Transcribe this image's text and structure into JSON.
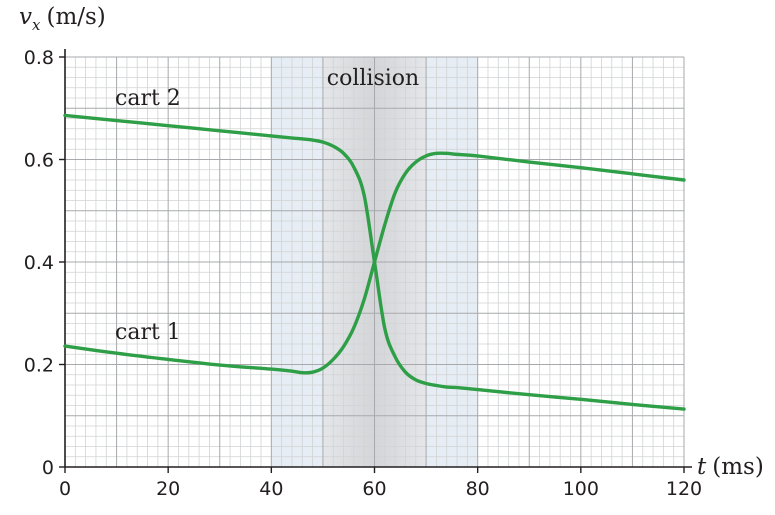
{
  "chart_data": {
    "type": "line",
    "xlabel_var": "t",
    "xlabel_unit": "(ms)",
    "ylabel_var": "v",
    "ylabel_sub": "x",
    "ylabel_unit": "(m/s)",
    "xlim": [
      0,
      120
    ],
    "ylim": [
      0,
      0.8
    ],
    "xticks": [
      "0",
      "20",
      "40",
      "60",
      "80",
      "100",
      "120"
    ],
    "yticks": [
      "0",
      "0.2",
      "0.4",
      "0.6",
      "0.8"
    ],
    "grid": true,
    "colors": {
      "line": "#2e9e47",
      "band_light": "#e6edf4",
      "band_dark": "#d3d5d8"
    },
    "annotation": {
      "label": "collision",
      "range_outer": [
        40,
        80
      ],
      "range_inner": [
        50,
        70
      ]
    },
    "series": [
      {
        "name": "cart 2",
        "x": [
          0,
          10,
          20,
          30,
          40,
          45,
          48,
          50,
          52,
          54,
          56,
          58,
          60,
          62,
          64,
          66,
          68,
          70,
          72,
          74,
          76,
          80,
          90,
          100,
          110,
          120
        ],
        "y": [
          0.686,
          0.676,
          0.666,
          0.656,
          0.646,
          0.641,
          0.638,
          0.634,
          0.626,
          0.612,
          0.585,
          0.53,
          0.4,
          0.27,
          0.215,
          0.185,
          0.17,
          0.163,
          0.159,
          0.156,
          0.155,
          0.151,
          0.141,
          0.132,
          0.122,
          0.113
        ]
      },
      {
        "name": "cart 1",
        "x": [
          0,
          10,
          20,
          30,
          40,
          44,
          46,
          48,
          50,
          52,
          54,
          56,
          58,
          60,
          62,
          64,
          66,
          68,
          70,
          72,
          74,
          76,
          80,
          90,
          100,
          110,
          120
        ],
        "y": [
          0.236,
          0.222,
          0.21,
          0.199,
          0.191,
          0.187,
          0.184,
          0.185,
          0.193,
          0.21,
          0.235,
          0.272,
          0.327,
          0.4,
          0.473,
          0.535,
          0.573,
          0.595,
          0.607,
          0.612,
          0.612,
          0.61,
          0.607,
          0.595,
          0.584,
          0.572,
          0.56
        ]
      }
    ]
  }
}
